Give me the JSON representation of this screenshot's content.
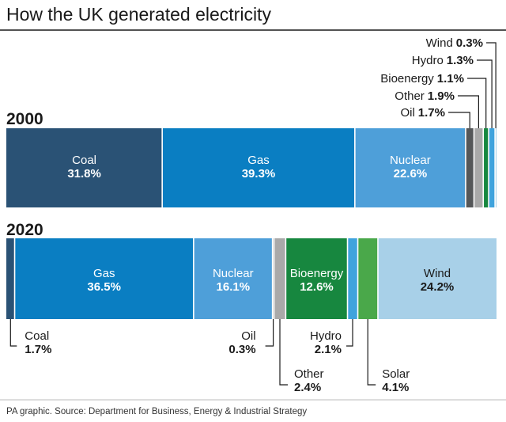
{
  "chart_data": {
    "type": "bar",
    "orientation": "horizontal",
    "stacked": true,
    "normalized": "percent",
    "title": "How the UK generated electricity",
    "source": "PA graphic. Source: Department for Business, Energy & Industrial Strategy",
    "categories": [
      "2000",
      "2020"
    ],
    "bars": [
      {
        "year": "2000",
        "segments": [
          {
            "name": "Coal",
            "value": 31.8,
            "label": "31.8%",
            "color": "#2a5275"
          },
          {
            "name": "Gas",
            "value": 39.3,
            "label": "39.3%",
            "color": "#0a7ec2"
          },
          {
            "name": "Nuclear",
            "value": 22.6,
            "label": "22.6%",
            "color": "#4e9fd9"
          },
          {
            "name": "Oil",
            "value": 1.7,
            "label": "1.7%",
            "color": "#555759"
          },
          {
            "name": "Other",
            "value": 1.9,
            "label": "1.9%",
            "color": "#a9a9a9"
          },
          {
            "name": "Bioenergy",
            "value": 1.1,
            "label": "1.1%",
            "color": "#17873f"
          },
          {
            "name": "Hydro",
            "value": 1.3,
            "label": "1.3%",
            "color": "#3fa3dd"
          },
          {
            "name": "Wind",
            "value": 0.3,
            "label": "0.3%",
            "color": "#a8d0e8"
          }
        ]
      },
      {
        "year": "2020",
        "segments": [
          {
            "name": "Coal",
            "value": 1.7,
            "label": "1.7%",
            "color": "#2a5275"
          },
          {
            "name": "Gas",
            "value": 36.5,
            "label": "36.5%",
            "color": "#0a7ec2"
          },
          {
            "name": "Nuclear",
            "value": 16.1,
            "label": "16.1%",
            "color": "#4e9fd9"
          },
          {
            "name": "Oil",
            "value": 0.3,
            "label": "0.3%",
            "color": "#555759"
          },
          {
            "name": "Other",
            "value": 2.4,
            "label": "2.4%",
            "color": "#a9a9a9"
          },
          {
            "name": "Bioenergy",
            "value": 12.6,
            "label": "12.6%",
            "color": "#17873f"
          },
          {
            "name": "Hydro",
            "value": 2.1,
            "label": "2.1%",
            "color": "#3fa3dd"
          },
          {
            "name": "Solar",
            "value": 4.1,
            "label": "4.1%",
            "color": "#4aa84a"
          },
          {
            "name": "Wind",
            "value": 24.2,
            "label": "24.2%",
            "color": "#a8d0e8"
          }
        ]
      }
    ]
  }
}
